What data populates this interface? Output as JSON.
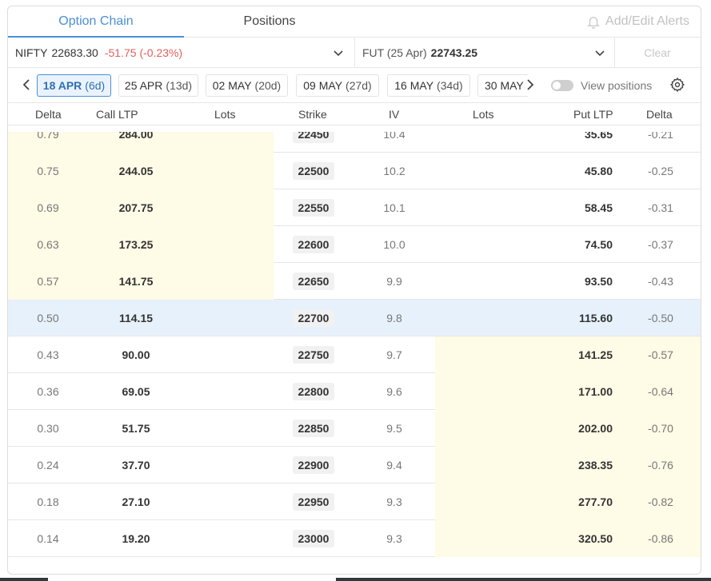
{
  "tabs": {
    "option_chain": "Option Chain",
    "positions": "Positions",
    "alerts": "Add/Edit Alerts"
  },
  "instrument": {
    "name": "NIFTY",
    "ltp": "22683.30",
    "change": "-51.75 (-0.23%)",
    "fut_label": "FUT (25 Apr)",
    "fut_ltp": "22743.25",
    "clear": "Clear"
  },
  "expiries": [
    {
      "date": "18 APR",
      "days": "(6d)",
      "active": true
    },
    {
      "date": "25 APR",
      "days": "(13d)",
      "active": false
    },
    {
      "date": "02 MAY",
      "days": "(20d)",
      "active": false
    },
    {
      "date": "09 MAY",
      "days": "(27d)",
      "active": false
    },
    {
      "date": "16 MAY",
      "days": "(34d)",
      "active": false
    },
    {
      "date": "30 MAY",
      "days": "",
      "active": false
    }
  ],
  "view_positions": "View positions",
  "columns": {
    "delta_call": "Delta",
    "call_ltp": "Call LTP",
    "lots_call": "Lots",
    "strike": "Strike",
    "iv": "IV",
    "lots_put": "Lots",
    "put_ltp": "Put LTP",
    "delta_put": "Delta"
  },
  "rows": [
    {
      "delta_call": "0.79",
      "call_ltp": "284.00",
      "strike": "22450",
      "iv": "10.4",
      "put_ltp": "35.65",
      "delta_put": "-0.21",
      "itm": "call"
    },
    {
      "delta_call": "0.75",
      "call_ltp": "244.05",
      "strike": "22500",
      "iv": "10.2",
      "put_ltp": "45.80",
      "delta_put": "-0.25",
      "itm": "call"
    },
    {
      "delta_call": "0.69",
      "call_ltp": "207.75",
      "strike": "22550",
      "iv": "10.1",
      "put_ltp": "58.45",
      "delta_put": "-0.31",
      "itm": "call"
    },
    {
      "delta_call": "0.63",
      "call_ltp": "173.25",
      "strike": "22600",
      "iv": "10.0",
      "put_ltp": "74.50",
      "delta_put": "-0.37",
      "itm": "call"
    },
    {
      "delta_call": "0.57",
      "call_ltp": "141.75",
      "strike": "22650",
      "iv": "9.9",
      "put_ltp": "93.50",
      "delta_put": "-0.43",
      "itm": "call"
    },
    {
      "delta_call": "0.50",
      "call_ltp": "114.15",
      "strike": "22700",
      "iv": "9.8",
      "put_ltp": "115.60",
      "delta_put": "-0.50",
      "itm": "atm"
    },
    {
      "delta_call": "0.43",
      "call_ltp": "90.00",
      "strike": "22750",
      "iv": "9.7",
      "put_ltp": "141.25",
      "delta_put": "-0.57",
      "itm": "put"
    },
    {
      "delta_call": "0.36",
      "call_ltp": "69.05",
      "strike": "22800",
      "iv": "9.6",
      "put_ltp": "171.00",
      "delta_put": "-0.64",
      "itm": "put"
    },
    {
      "delta_call": "0.30",
      "call_ltp": "51.75",
      "strike": "22850",
      "iv": "9.5",
      "put_ltp": "202.00",
      "delta_put": "-0.70",
      "itm": "put"
    },
    {
      "delta_call": "0.24",
      "call_ltp": "37.70",
      "strike": "22900",
      "iv": "9.4",
      "put_ltp": "238.35",
      "delta_put": "-0.76",
      "itm": "put"
    },
    {
      "delta_call": "0.18",
      "call_ltp": "27.10",
      "strike": "22950",
      "iv": "9.3",
      "put_ltp": "277.70",
      "delta_put": "-0.82",
      "itm": "put"
    },
    {
      "delta_call": "0.14",
      "call_ltp": "19.20",
      "strike": "23000",
      "iv": "9.3",
      "put_ltp": "320.50",
      "delta_put": "-0.86",
      "itm": "put"
    }
  ],
  "colors": {
    "accent": "#4a8fd6",
    "negative": "#e25f5b",
    "itm_bg": "#fefbe6",
    "atm_bg": "#e6f1fb"
  }
}
